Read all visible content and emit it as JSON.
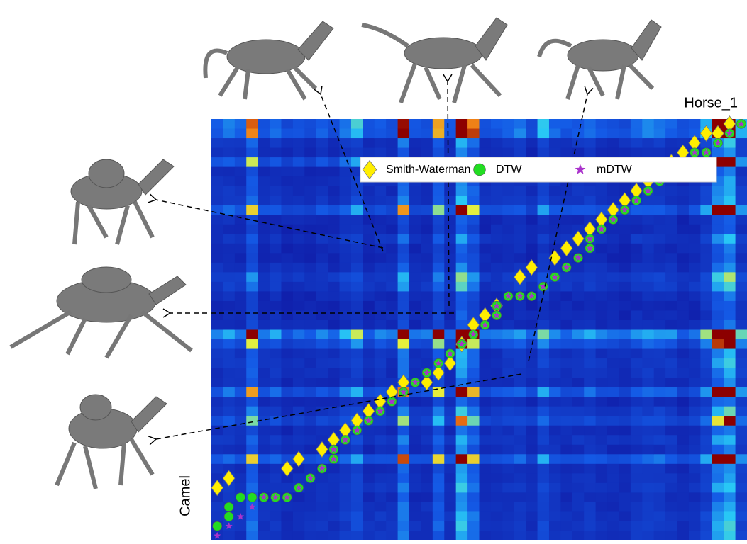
{
  "chart_data": {
    "type": "scatter",
    "top_label": "Horse_1",
    "side_label": "Camel",
    "xlim": [
      -0.5,
      45.5
    ],
    "ylim": [
      43.5,
      -0.5
    ],
    "series": [
      {
        "name": "Smith-Waterman",
        "color": "#ffee00",
        "marker": "diamond",
        "x": [
          0,
          1,
          6,
          7,
          9,
          10,
          11,
          12,
          13,
          14,
          15,
          16,
          18,
          19,
          20,
          21,
          22,
          23,
          24,
          26,
          27,
          29,
          30,
          31,
          32,
          33,
          34,
          35,
          36,
          37,
          38,
          39,
          40,
          41,
          42,
          43,
          44
        ],
        "values": [
          5,
          6,
          7,
          8,
          9,
          10,
          11,
          12,
          13,
          14,
          15,
          16,
          16,
          17,
          18,
          20,
          22,
          23,
          24,
          27,
          28,
          29,
          30,
          31,
          32,
          33,
          34,
          35,
          36,
          37,
          38,
          39,
          40,
          41,
          42,
          42,
          43
        ]
      },
      {
        "name": "DTW",
        "color": "#22dd22",
        "marker": "circle",
        "x": [
          0,
          1,
          1,
          2,
          3,
          4,
          5,
          6,
          7,
          8,
          9,
          10,
          10,
          11,
          12,
          13,
          14,
          15,
          16,
          17,
          18,
          19,
          20,
          21,
          22,
          23,
          24,
          24,
          25,
          26,
          27,
          28,
          29,
          30,
          31,
          32,
          32,
          33,
          34,
          35,
          36,
          37,
          38,
          39,
          40,
          41,
          42,
          43,
          44,
          45
        ],
        "values": [
          1,
          2,
          3,
          4,
          4,
          4,
          4,
          4,
          5,
          6,
          7,
          8,
          9,
          10,
          11,
          12,
          13,
          14,
          15,
          16,
          17,
          18,
          19,
          20,
          21,
          22,
          23,
          24,
          25,
          25,
          25,
          26,
          27,
          28,
          29,
          30,
          31,
          32,
          33,
          34,
          35,
          36,
          37,
          38,
          39,
          40,
          40,
          41,
          42,
          43
        ]
      },
      {
        "name": "mDTW",
        "color": "#aa33cc",
        "marker": "star",
        "x": [
          0,
          1,
          2,
          3,
          4,
          5,
          6,
          7,
          8,
          9,
          10,
          10,
          11,
          12,
          13,
          14,
          15,
          16,
          17,
          18,
          19,
          20,
          21,
          22,
          23,
          24,
          24,
          25,
          26,
          27,
          28,
          29,
          30,
          31,
          32,
          32,
          33,
          34,
          35,
          36,
          37,
          38,
          39,
          40,
          41,
          42,
          43,
          44,
          45
        ],
        "values": [
          0,
          1,
          2,
          3,
          4,
          4,
          4,
          5,
          6,
          7,
          8,
          9,
          10,
          11,
          12,
          13,
          14,
          15,
          16,
          17,
          18,
          19,
          20,
          21,
          22,
          23,
          24,
          25,
          25,
          25,
          26,
          27,
          28,
          29,
          30,
          31,
          32,
          33,
          34,
          35,
          36,
          37,
          38,
          39,
          40,
          40,
          41,
          42,
          43
        ]
      }
    ]
  }
}
